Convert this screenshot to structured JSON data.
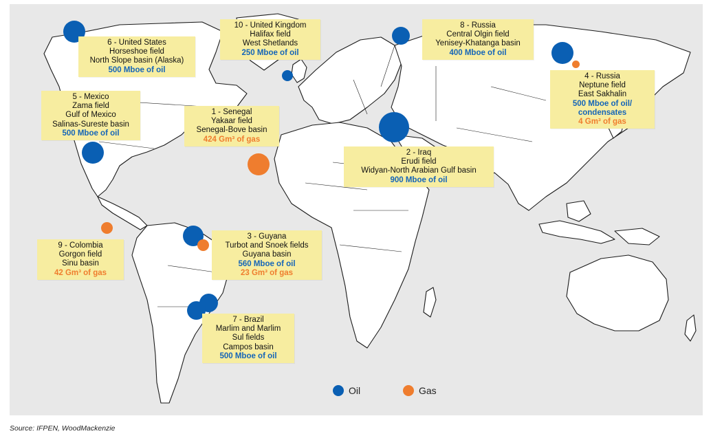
{
  "colors": {
    "oil": "#0a5fb3",
    "gas": "#ef7d2e",
    "callout_bg": "#f7eda0",
    "sea": "#e8e8e8"
  },
  "callouts": [
    {
      "id": "us",
      "lines": [
        "6 - United States",
        "Horseshoe field",
        "North Slope basin (Alaska)"
      ],
      "oil": "500 Mboe of oil",
      "gas": ""
    },
    {
      "id": "uk",
      "lines": [
        "10 - United Kingdom",
        "Halifax field",
        "West Shetlands"
      ],
      "oil": "250 Mboe of oil",
      "gas": ""
    },
    {
      "id": "ru8",
      "lines": [
        "8 - Russia",
        "Central Olgin field",
        "Yenisey-Khatanga basin"
      ],
      "oil": "400 Mboe of oil",
      "gas": ""
    },
    {
      "id": "ru4",
      "lines": [
        "4 - Russia",
        "Neptune field",
        "East Sakhalin"
      ],
      "oil": "500 Mboe of oil/ condensates",
      "gas": "4 Gm³ of gas"
    },
    {
      "id": "mx",
      "lines": [
        "5 - Mexico",
        "Zama field",
        "Gulf of Mexico",
        "Salinas-Sureste basin"
      ],
      "oil": "500 Mboe of oil",
      "gas": ""
    },
    {
      "id": "sn",
      "lines": [
        "1 - Senegal",
        "Yakaar field",
        "Senegal-Bove basin"
      ],
      "oil": "",
      "gas": "424 Gm³ of gas"
    },
    {
      "id": "iq",
      "lines": [
        "2 - Iraq",
        "Erudi field",
        "Widyan-North Arabian Gulf basin"
      ],
      "oil": "900 Mboe of oil",
      "gas": ""
    },
    {
      "id": "co",
      "lines": [
        "9 - Colombia",
        "Gorgon field",
        "Sinu basin"
      ],
      "oil": "",
      "gas": "42 Gm³ of gas"
    },
    {
      "id": "gy",
      "lines": [
        "3 - Guyana",
        "Turbot and Snoek fields",
        "Guyana basin"
      ],
      "oil": "560 Mboe of oil",
      "gas": "23 Gm³ of gas"
    },
    {
      "id": "br",
      "lines": [
        "7 - Brazil",
        "Marlim and Marlim",
        "Sul fields",
        "Campos basin"
      ],
      "oil": "500 Mboe of oil",
      "gas": ""
    }
  ],
  "legend": {
    "oil_label": "Oil",
    "gas_label": "Gas"
  },
  "source": "Source: IFPEN, WoodMackenzie"
}
